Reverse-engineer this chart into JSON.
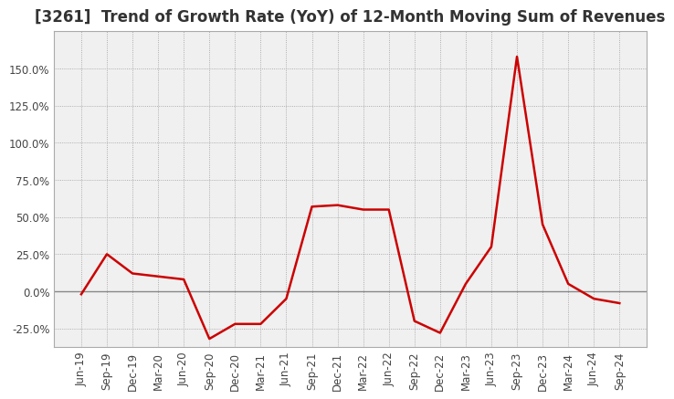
{
  "title": "[3261]  Trend of Growth Rate (YoY) of 12-Month Moving Sum of Revenues",
  "x_labels": [
    "Jun-19",
    "Sep-19",
    "Dec-19",
    "Mar-20",
    "Jun-20",
    "Sep-20",
    "Dec-20",
    "Mar-21",
    "Jun-21",
    "Sep-21",
    "Dec-21",
    "Mar-22",
    "Jun-22",
    "Sep-22",
    "Dec-22",
    "Mar-23",
    "Jun-23",
    "Sep-23",
    "Dec-23",
    "Mar-24",
    "Jun-24",
    "Sep-24"
  ],
  "y_values": [
    -2.0,
    25.0,
    12.0,
    10.0,
    8.0,
    -32.0,
    -22.0,
    -22.0,
    -5.0,
    57.0,
    58.0,
    55.0,
    55.0,
    -20.0,
    -28.0,
    5.0,
    30.0,
    158.0,
    45.0,
    5.0,
    -5.0,
    -8.0
  ],
  "ylim": [
    -37.5,
    175.0
  ],
  "yticks": [
    -25.0,
    0.0,
    25.0,
    50.0,
    75.0,
    100.0,
    125.0,
    150.0
  ],
  "line_color": "#cc0000",
  "line_width": 1.8,
  "title_fontsize": 12,
  "tick_fontsize": 8.5,
  "grid_color": "#999999",
  "background_color": "#ffffff",
  "plot_bg_color": "#f0f0f0",
  "zero_line_color": "#888888",
  "spine_color": "#aaaaaa"
}
